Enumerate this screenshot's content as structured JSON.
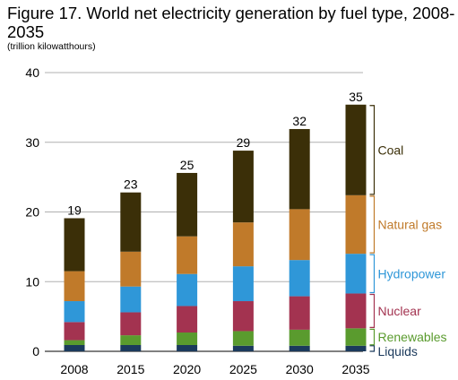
{
  "chart_data": {
    "type": "bar",
    "stacked": true,
    "title": "Figure 17. World net electricity generation by fuel type, 2008-2035",
    "subtitle": "(trillion kilowatthours)",
    "xlabel": "",
    "ylabel": "",
    "ylim": [
      0,
      40
    ],
    "yticks": [
      0,
      10,
      20,
      30,
      40
    ],
    "grid": true,
    "legend": "right, labels with brackets beside the last bar",
    "categories": [
      "2008",
      "2015",
      "2020",
      "2025",
      "2030",
      "2035"
    ],
    "totals": [
      "19",
      "23",
      "25",
      "29",
      "32",
      "35"
    ],
    "series": [
      {
        "name": "Liquids",
        "color": "#1b3a5c",
        "values": [
          0.9,
          0.9,
          0.9,
          0.8,
          0.8,
          0.8
        ]
      },
      {
        "name": "Renewables",
        "color": "#5a9b2e",
        "values": [
          0.7,
          1.4,
          1.8,
          2.1,
          2.3,
          2.5
        ]
      },
      {
        "name": "Nuclear",
        "color": "#a33350",
        "values": [
          2.6,
          3.3,
          3.8,
          4.3,
          4.8,
          5.0
        ]
      },
      {
        "name": "Hydropower",
        "color": "#2f97d8",
        "values": [
          3.0,
          3.7,
          4.6,
          5.0,
          5.2,
          5.7
        ]
      },
      {
        "name": "Natural gas",
        "color": "#c07a2a",
        "values": [
          4.3,
          5.0,
          5.4,
          6.3,
          7.3,
          8.4
        ]
      },
      {
        "name": "Coal",
        "color": "#3b2f08",
        "values": [
          7.6,
          8.5,
          9.1,
          10.3,
          11.5,
          13.0
        ]
      }
    ]
  }
}
